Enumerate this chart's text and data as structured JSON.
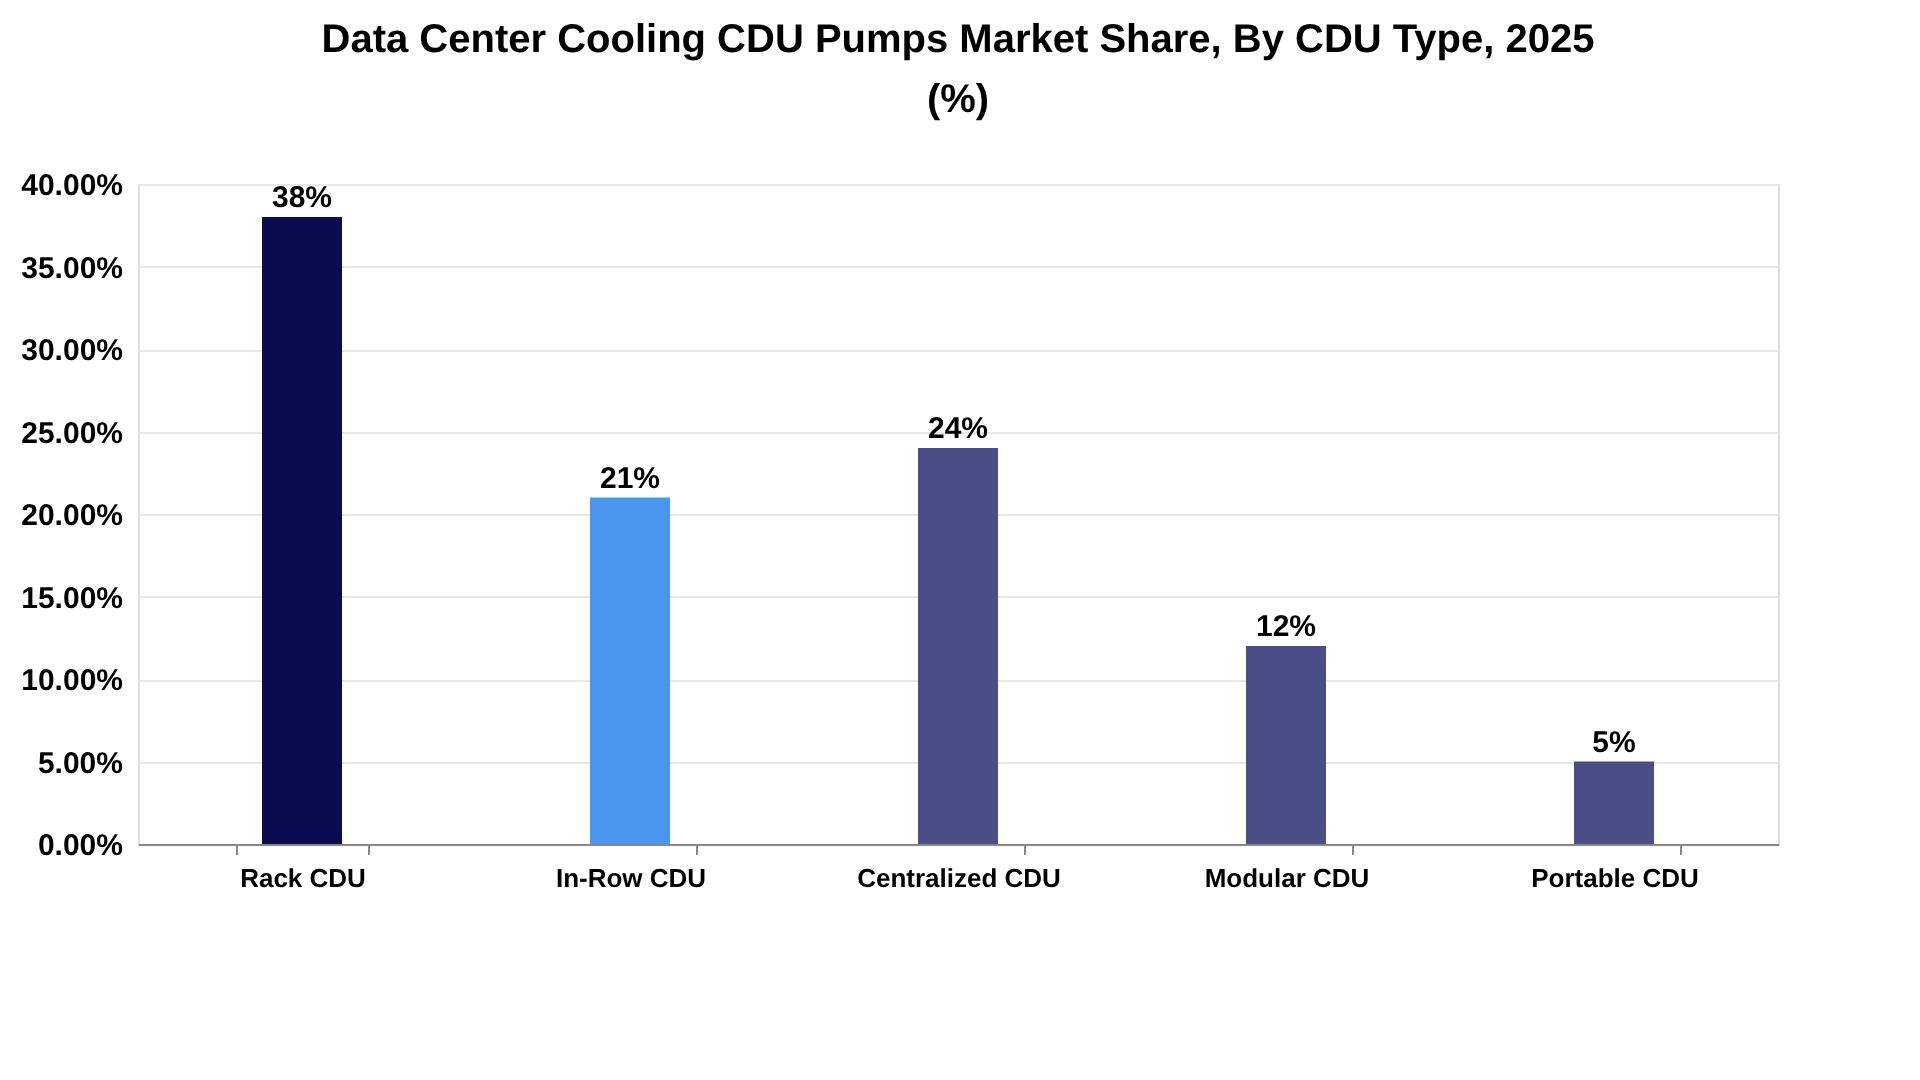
{
  "chart_data": {
    "type": "bar",
    "title": "Data Center Cooling CDU Pumps Market Share, By CDU Type, 2025 (%)",
    "categories": [
      "Rack CDU",
      "In-Row CDU",
      "Centralized CDU",
      "Modular CDU",
      "Portable CDU"
    ],
    "values": [
      38,
      21,
      24,
      12,
      5
    ],
    "colors": [
      "#0b0b50",
      "#4a96ef",
      "#4b4d85",
      "#4b4d85",
      "#4b4d85"
    ],
    "value_labels": [
      "38%",
      "21%",
      "24%",
      "12%",
      "5%"
    ],
    "ylim": [
      0,
      40
    ],
    "yticks": [
      {
        "value": 0,
        "label": "0.00%"
      },
      {
        "value": 5,
        "label": "5.00%"
      },
      {
        "value": 10,
        "label": "10.00%"
      },
      {
        "value": 15,
        "label": "15.00%"
      },
      {
        "value": 20,
        "label": "20.00%"
      },
      {
        "value": 25,
        "label": "25.00%"
      },
      {
        "value": 30,
        "label": "30.00%"
      },
      {
        "value": 35,
        "label": "35.00%"
      },
      {
        "value": 40,
        "label": "40.00%"
      }
    ],
    "grid": "y",
    "legend": false
  }
}
